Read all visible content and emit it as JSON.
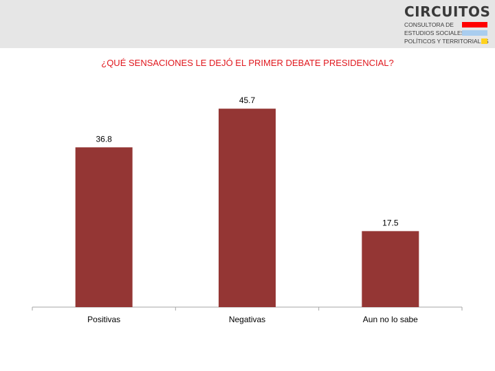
{
  "logo": {
    "name": "CIRCUITOS",
    "line1": "CONSULTORA DE",
    "line2": "ESTUDIOS SOCIALES,",
    "line3": "POLÍTICOS Y TERRITORIALES",
    "stripe_colors": [
      "#ff0000",
      "#a9cdef",
      "#ffd21f"
    ]
  },
  "colors": {
    "bar": "#943634",
    "title": "#e0161c",
    "axis": "#a6a6a6"
  },
  "chart_data": {
    "type": "bar",
    "title": "¿QUÉ SENSACIONES LE DEJÓ EL PRIMER DEBATE PRESIDENCIAL?",
    "categories": [
      "Positivas",
      "Negativas",
      "Aun no lo sabe"
    ],
    "values": [
      36.8,
      45.7,
      17.5
    ],
    "data_labels": [
      "36.8",
      "45.7",
      "17.5"
    ],
    "ylim": [
      0,
      50
    ],
    "grid": false,
    "legend": "none"
  }
}
